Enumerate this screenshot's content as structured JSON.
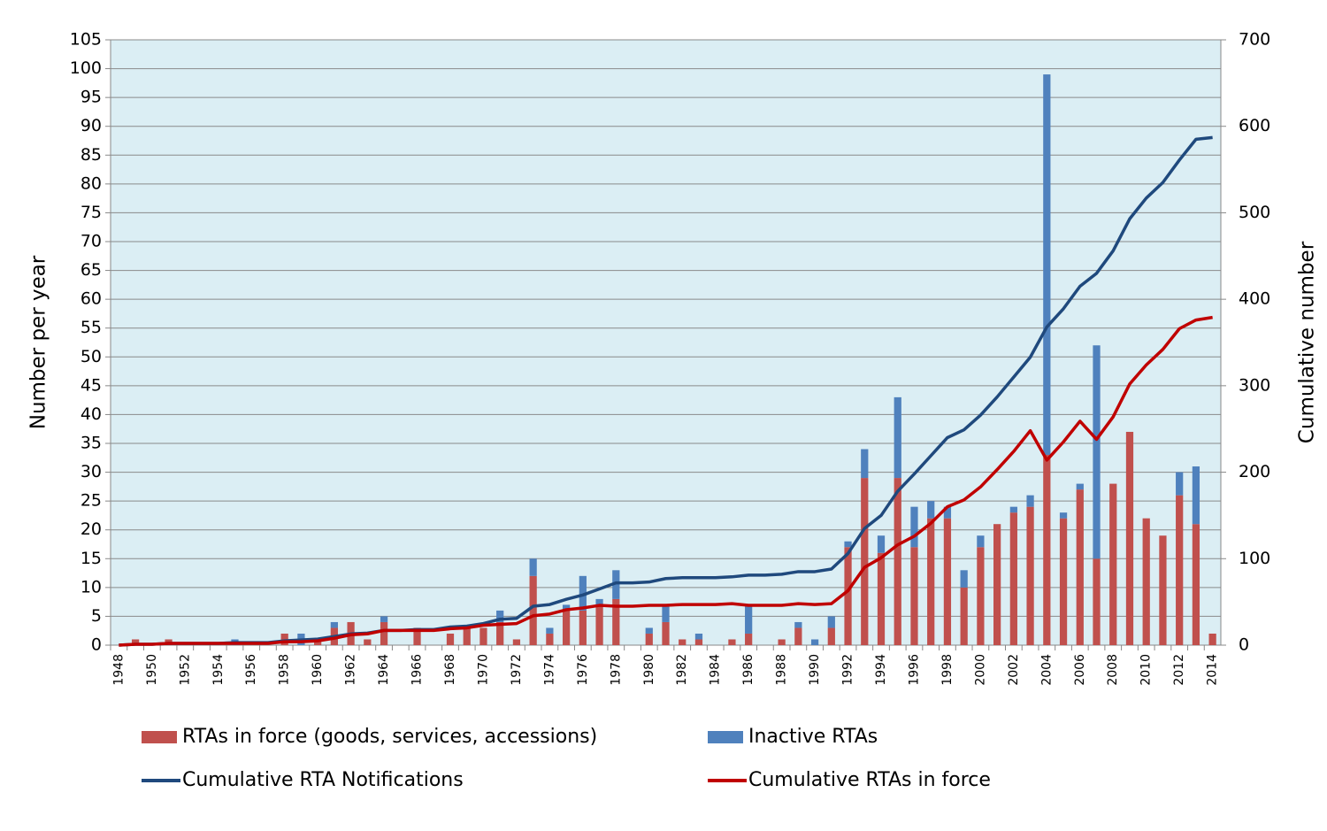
{
  "chart_data": {
    "type": "bar-line",
    "y_label": "Number per year",
    "y2_label": "Cumulative number",
    "categories": [
      "1948",
      null,
      "1950",
      null,
      "1952",
      null,
      "1954",
      null,
      "1956",
      null,
      "1958",
      null,
      "1960",
      null,
      "1962",
      null,
      "1964",
      null,
      "1966",
      null,
      "1968",
      null,
      "1970",
      null,
      "1972",
      null,
      "1974",
      null,
      "1976",
      null,
      "1978",
      null,
      "1980",
      null,
      "1982",
      null,
      "1984",
      null,
      "1986",
      null,
      "1988",
      null,
      "1990",
      null,
      "1992",
      null,
      "1994",
      null,
      "1996",
      null,
      "1998",
      null,
      "2000",
      null,
      "2002",
      null,
      "2004",
      null,
      "2006",
      null,
      "2008",
      null,
      "2010",
      null,
      "2012",
      null,
      "2014"
    ],
    "series": [
      {
        "name": "RTAs in force (goods, services, accessions)",
        "color": "#c0504d",
        "kind": "bar",
        "values": [
          0,
          1,
          0,
          1,
          0,
          0,
          0,
          0,
          0,
          0,
          2,
          0,
          1,
          3,
          4,
          1,
          4,
          0,
          3,
          0,
          2,
          3,
          3,
          4,
          1,
          12,
          2,
          6,
          6,
          7,
          8,
          0,
          2,
          4,
          1,
          1,
          0,
          1,
          2,
          0,
          1,
          3,
          0,
          3,
          17,
          29,
          16,
          29,
          17,
          22,
          22,
          10,
          17,
          21,
          23,
          24,
          33,
          22,
          27,
          15,
          28,
          37,
          22,
          19,
          26,
          21,
          2
        ]
      },
      {
        "name": "Inactive RTAs",
        "color": "#4f81bd",
        "kind": "bar",
        "values": [
          0,
          0,
          0,
          0,
          0,
          0,
          0,
          1,
          0,
          0,
          0,
          2,
          0,
          1,
          0,
          0,
          1,
          0,
          0,
          0,
          0,
          0,
          0,
          2,
          0,
          3,
          1,
          1,
          6,
          1,
          5,
          0,
          1,
          3,
          0,
          1,
          0,
          0,
          5,
          0,
          0,
          1,
          1,
          2,
          1,
          5,
          3,
          14,
          7,
          3,
          2,
          3,
          2,
          0,
          1,
          2,
          66,
          1,
          1,
          37,
          0,
          0,
          0,
          0,
          4,
          10,
          0
        ]
      },
      {
        "name": "Cumulative RTA Notifications",
        "color": "#1f497d",
        "kind": "line",
        "axis": "y2",
        "values": [
          0,
          1,
          1,
          2,
          2,
          2,
          2,
          3,
          3,
          3,
          5,
          6,
          7,
          10,
          13,
          14,
          17,
          17,
          18,
          18,
          21,
          22,
          25,
          30,
          31,
          45,
          47,
          53,
          58,
          65,
          72,
          72,
          73,
          77,
          78,
          78,
          78,
          79,
          81,
          81,
          82,
          85,
          85,
          88,
          106,
          135,
          150,
          178,
          198,
          219,
          240,
          249,
          266,
          287,
          310,
          333,
          368,
          389,
          415,
          430,
          456,
          493,
          517,
          535,
          561,
          585,
          587
        ]
      },
      {
        "name": "Cumulative RTAs in force",
        "color": "#c00000",
        "kind": "line",
        "axis": "y2",
        "values": [
          0,
          1,
          1,
          2,
          2,
          2,
          2,
          2,
          2,
          2,
          4,
          4,
          5,
          8,
          12,
          13,
          17,
          17,
          17,
          17,
          19,
          20,
          23,
          24,
          25,
          34,
          36,
          41,
          43,
          46,
          45,
          45,
          46,
          46,
          47,
          47,
          47,
          48,
          46,
          46,
          46,
          48,
          47,
          48,
          63,
          90,
          101,
          116,
          126,
          141,
          160,
          168,
          183,
          203,
          224,
          248,
          214,
          235,
          259,
          238,
          264,
          302,
          324,
          342,
          366,
          376,
          379
        ]
      }
    ],
    "ylim": [
      0,
      105
    ],
    "yticks": [
      0,
      5,
      10,
      15,
      20,
      25,
      30,
      35,
      40,
      45,
      50,
      55,
      60,
      65,
      70,
      75,
      80,
      85,
      90,
      95,
      100,
      105
    ],
    "y2lim": [
      0,
      700
    ],
    "y2ticks": [
      0,
      100,
      200,
      300,
      400,
      500,
      600,
      700
    ],
    "grid": true,
    "plot_background": "#dbeef4",
    "legend": "bottom"
  }
}
